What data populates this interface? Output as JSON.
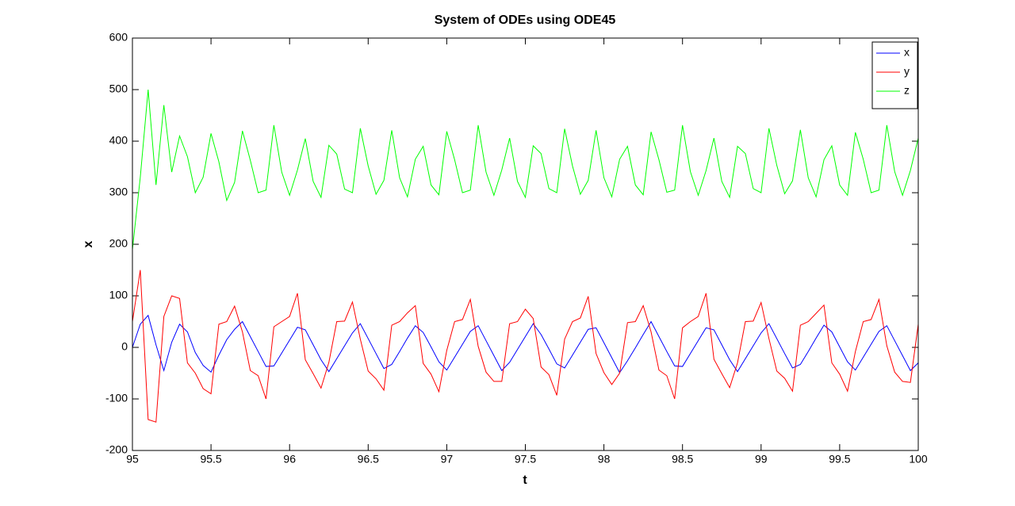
{
  "chart_data": {
    "type": "line",
    "title": "System of ODEs using ODE45",
    "x_label": "t",
    "y_label": "x",
    "x": [
      95,
      95.05,
      95.1,
      95.15,
      95.2,
      95.25,
      95.3,
      95.35,
      95.4,
      95.45,
      95.5,
      95.55,
      95.6,
      95.65,
      95.7,
      95.75,
      95.8,
      95.85,
      95.9,
      95.95,
      96,
      96.05,
      96.1,
      96.15,
      96.2,
      96.25,
      96.3,
      96.35,
      96.4,
      96.45,
      96.5,
      96.55,
      96.6,
      96.65,
      96.7,
      96.75,
      96.8,
      96.85,
      96.9,
      96.95,
      97,
      97.05,
      97.1,
      97.15,
      97.2,
      97.25,
      97.3,
      97.35,
      97.4,
      97.45,
      97.5,
      97.55,
      97.6,
      97.65,
      97.7,
      97.75,
      97.8,
      97.85,
      97.9,
      97.95,
      98,
      98.05,
      98.1,
      98.15,
      98.2,
      98.25,
      98.3,
      98.35,
      98.4,
      98.45,
      98.5,
      98.55,
      98.6,
      98.65,
      98.7,
      98.75,
      98.8,
      98.85,
      98.9,
      98.95,
      99,
      99.05,
      99.1,
      99.15,
      99.2,
      99.25,
      99.3,
      99.35,
      99.4,
      99.45,
      99.5,
      99.55,
      99.6,
      99.65,
      99.7,
      99.75,
      99.8,
      99.85,
      99.9,
      99.95,
      100
    ],
    "series": [
      {
        "name": "x",
        "color": "#0000ff",
        "values": [
          0,
          45,
          62,
          5,
          -45,
          10,
          45,
          30,
          -10,
          -35,
          -48,
          -15,
          15,
          35,
          50,
          21,
          -8,
          -37,
          -36,
          -11,
          14,
          39,
          34,
          5,
          -24,
          -47,
          -22,
          3,
          28,
          46,
          17,
          -12,
          -41,
          -33,
          -8,
          18,
          42,
          29,
          1,
          -28,
          -44,
          -19,
          6,
          31,
          42,
          13,
          -16,
          -45,
          -29,
          -4,
          21,
          46,
          25,
          -3,
          -32,
          -40,
          -15,
          10,
          35,
          38,
          9,
          -20,
          -49,
          -26,
          -1,
          25,
          50,
          21,
          -8,
          -36,
          -37,
          -12,
          13,
          38,
          34,
          5,
          -24,
          -47,
          -22,
          3,
          28,
          46,
          17,
          -12,
          -40,
          -33,
          -8,
          18,
          43,
          30,
          1,
          -28,
          -44,
          -19,
          6,
          31,
          42,
          13,
          -16,
          -45,
          -30
        ]
      },
      {
        "name": "y",
        "color": "#ff0000",
        "values": [
          50,
          150,
          -140,
          -145,
          60,
          100,
          95,
          -30,
          -50,
          -80,
          -90,
          45,
          50,
          80,
          30,
          -45,
          -55,
          -100,
          40,
          50,
          60,
          105,
          -24,
          -51,
          -79,
          -29,
          50,
          51,
          88,
          16,
          -46,
          -61,
          -83,
          43,
          50,
          67,
          81,
          -31,
          -52,
          -86,
          -6,
          50,
          54,
          93,
          2,
          -48,
          -66,
          -66,
          46,
          50,
          74,
          56,
          -38,
          -53,
          -93,
          16,
          50,
          57,
          99,
          -12,
          -49,
          -72,
          -50,
          48,
          50,
          81,
          30,
          -44,
          -55,
          -100,
          38,
          50,
          60,
          105,
          -23,
          -51,
          -78,
          -30,
          50,
          51,
          87,
          17,
          -46,
          -60,
          -85,
          43,
          50,
          66,
          82,
          -30,
          -52,
          -85,
          -8,
          50,
          54,
          93,
          3,
          -48,
          -66,
          -68,
          45
        ]
      },
      {
        "name": "z",
        "color": "#00ff00",
        "values": [
          190,
          330,
          500,
          315,
          470,
          340,
          410,
          370,
          300,
          330,
          415,
          360,
          285,
          320,
          420,
          363,
          300,
          305,
          431,
          340,
          295,
          344,
          405,
          322,
          291,
          392,
          375,
          307,
          300,
          425,
          352,
          297,
          324,
          421,
          329,
          292,
          365,
          390,
          315,
          296,
          419,
          364,
          300,
          305,
          431,
          340,
          295,
          344,
          406,
          322,
          291,
          391,
          376,
          308,
          300,
          424,
          352,
          297,
          324,
          421,
          329,
          292,
          365,
          390,
          315,
          296,
          418,
          364,
          301,
          305,
          431,
          341,
          295,
          343,
          406,
          322,
          291,
          390,
          376,
          308,
          300,
          425,
          353,
          298,
          323,
          422,
          329,
          292,
          364,
          391,
          315,
          295,
          417,
          365,
          300,
          305,
          431,
          341,
          295,
          343,
          406
        ]
      }
    ],
    "xlim": [
      95,
      100
    ],
    "xticks": [
      95,
      95.5,
      96,
      96.5,
      97,
      97.5,
      98,
      98.5,
      99,
      99.5,
      100
    ],
    "ylim": [
      -200,
      600
    ],
    "yticks": [
      -200,
      -100,
      0,
      100,
      200,
      300,
      400,
      500,
      600
    ],
    "grid": false,
    "legend_position": "upper right"
  }
}
